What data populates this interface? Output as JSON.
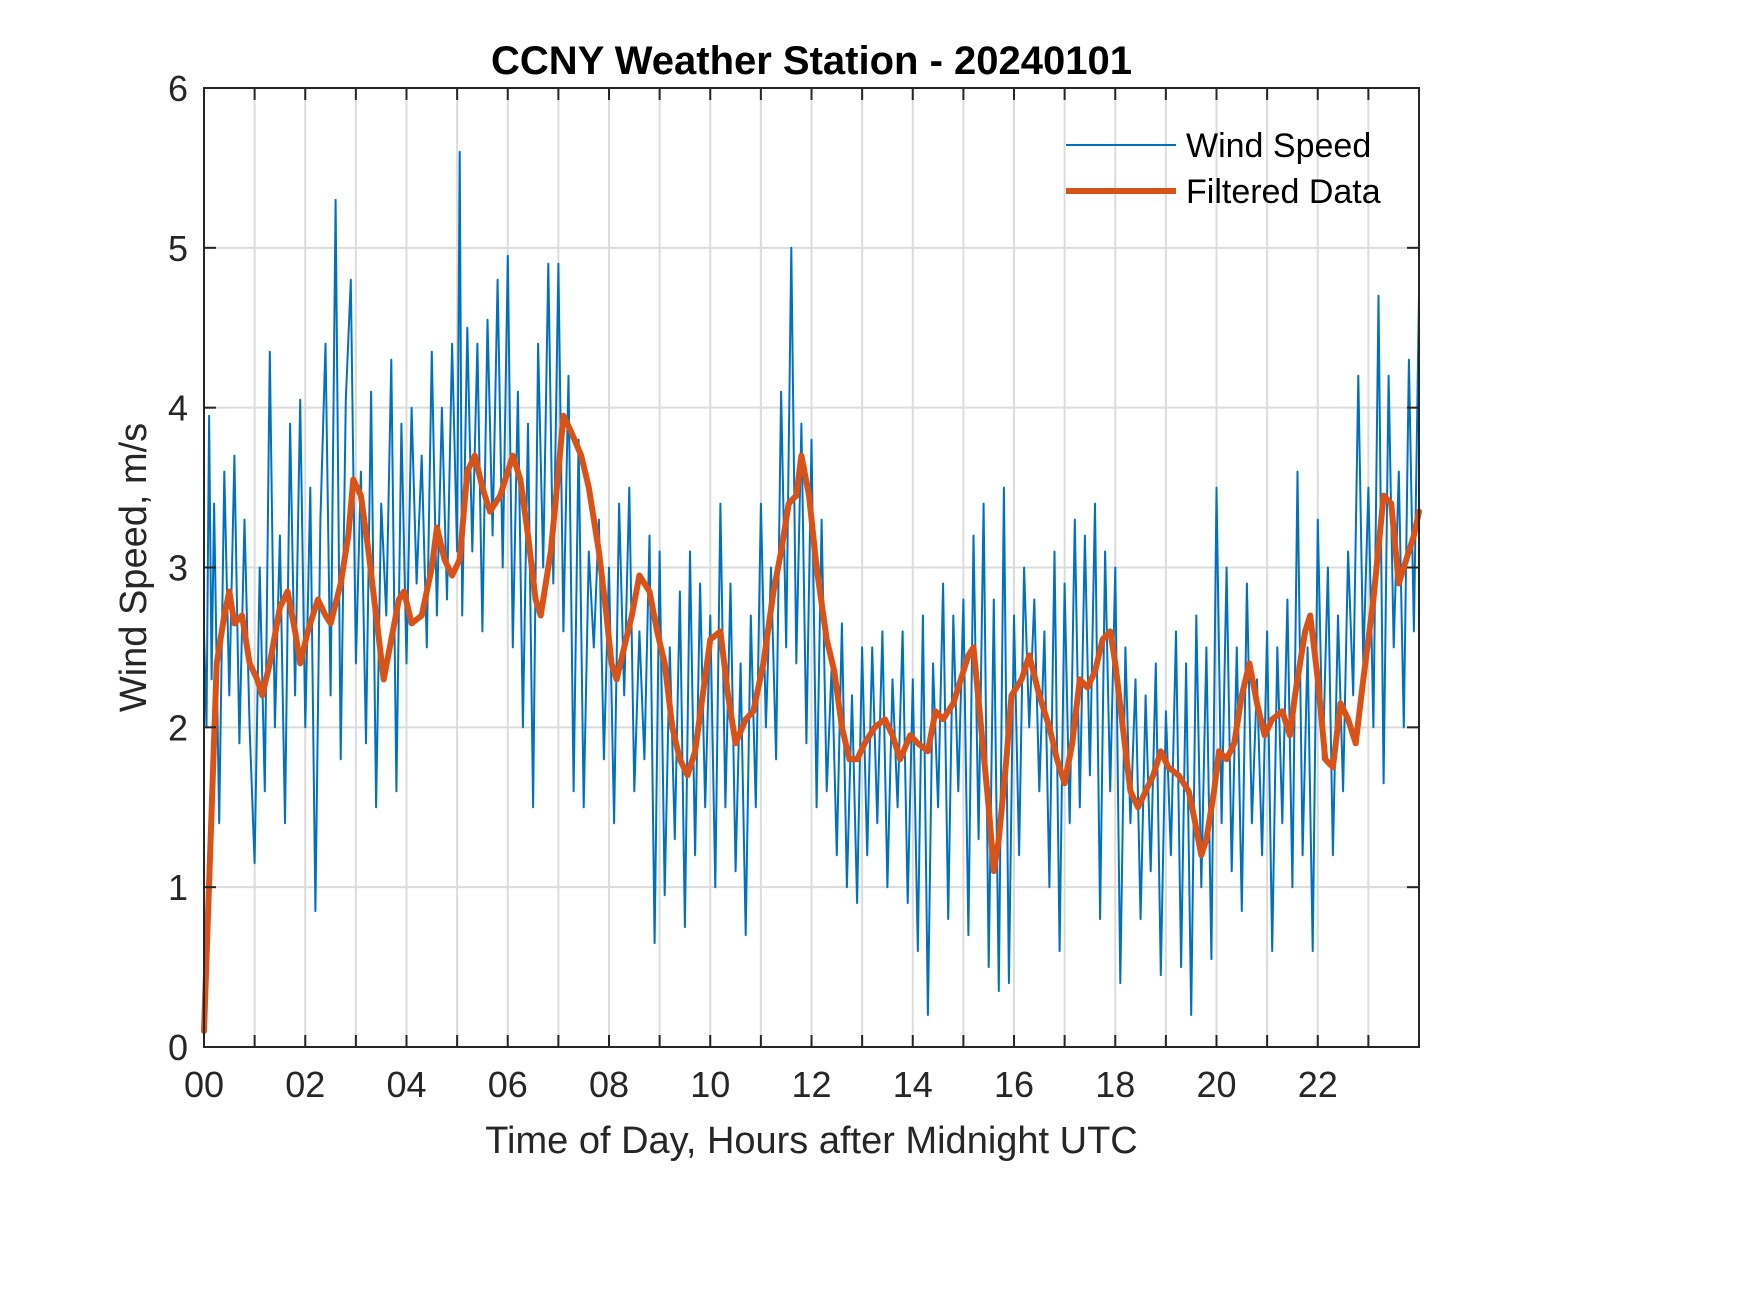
{
  "chart_data": {
    "type": "line",
    "title": "CCNY Weather Station - 20240101",
    "xlabel": "Time of Day, Hours after Midnight UTC",
    "ylabel": "Wind Speed, m/s",
    "xlim": [
      0,
      24
    ],
    "ylim": [
      0,
      6
    ],
    "grid": true,
    "legend_position": "top-right",
    "x_tick_values": [
      0,
      2,
      4,
      6,
      8,
      10,
      12,
      14,
      16,
      18,
      20,
      22
    ],
    "x_tick_labels": [
      "00",
      "02",
      "04",
      "06",
      "08",
      "10",
      "12",
      "14",
      "16",
      "18",
      "20",
      "22"
    ],
    "x_minor_grid_step_hours": 1,
    "y_tick_values": [
      0,
      1,
      2,
      3,
      4,
      5,
      6
    ],
    "y_tick_labels": [
      "0",
      "1",
      "2",
      "3",
      "4",
      "5",
      "6"
    ],
    "series": [
      {
        "name": "Wind Speed",
        "color": "#0072bd",
        "style": "thin",
        "note": "dense raw 1-minute-like samples; key extrema traced from figure",
        "x": [
          0.0,
          0.05,
          0.1,
          0.15,
          0.2,
          0.3,
          0.4,
          0.5,
          0.6,
          0.7,
          0.8,
          0.9,
          1.0,
          1.1,
          1.2,
          1.3,
          1.4,
          1.5,
          1.6,
          1.7,
          1.8,
          1.9,
          2.0,
          2.1,
          2.2,
          2.3,
          2.4,
          2.5,
          2.6,
          2.7,
          2.8,
          2.9,
          3.0,
          3.1,
          3.2,
          3.3,
          3.4,
          3.5,
          3.6,
          3.7,
          3.8,
          3.9,
          4.0,
          4.1,
          4.2,
          4.3,
          4.4,
          4.5,
          4.6,
          4.7,
          4.8,
          4.9,
          5.0,
          5.05,
          5.1,
          5.2,
          5.3,
          5.4,
          5.5,
          5.6,
          5.7,
          5.8,
          5.9,
          6.0,
          6.1,
          6.2,
          6.3,
          6.4,
          6.5,
          6.6,
          6.7,
          6.8,
          6.9,
          7.0,
          7.1,
          7.2,
          7.3,
          7.4,
          7.5,
          7.6,
          7.7,
          7.8,
          7.9,
          8.0,
          8.1,
          8.2,
          8.3,
          8.4,
          8.5,
          8.6,
          8.7,
          8.8,
          8.9,
          9.0,
          9.1,
          9.2,
          9.3,
          9.4,
          9.5,
          9.6,
          9.7,
          9.8,
          9.9,
          10.0,
          10.1,
          10.2,
          10.3,
          10.4,
          10.5,
          10.6,
          10.7,
          10.8,
          10.9,
          11.0,
          11.1,
          11.2,
          11.3,
          11.4,
          11.5,
          11.6,
          11.7,
          11.8,
          11.9,
          12.0,
          12.1,
          12.2,
          12.3,
          12.4,
          12.5,
          12.6,
          12.7,
          12.8,
          12.9,
          13.0,
          13.1,
          13.2,
          13.3,
          13.4,
          13.5,
          13.6,
          13.7,
          13.8,
          13.9,
          14.0,
          14.1,
          14.2,
          14.3,
          14.4,
          14.5,
          14.6,
          14.7,
          14.8,
          14.9,
          15.0,
          15.1,
          15.2,
          15.3,
          15.4,
          15.5,
          15.6,
          15.7,
          15.8,
          15.9,
          16.0,
          16.1,
          16.2,
          16.3,
          16.4,
          16.5,
          16.6,
          16.7,
          16.8,
          16.9,
          17.0,
          17.1,
          17.2,
          17.3,
          17.4,
          17.5,
          17.6,
          17.7,
          17.8,
          17.9,
          18.0,
          18.1,
          18.2,
          18.3,
          18.4,
          18.5,
          18.6,
          18.7,
          18.8,
          18.9,
          19.0,
          19.1,
          19.2,
          19.3,
          19.4,
          19.5,
          19.6,
          19.7,
          19.8,
          19.9,
          20.0,
          20.1,
          20.2,
          20.3,
          20.4,
          20.5,
          20.6,
          20.7,
          20.8,
          20.9,
          21.0,
          21.1,
          21.2,
          21.3,
          21.4,
          21.5,
          21.6,
          21.7,
          21.8,
          21.9,
          22.0,
          22.1,
          22.2,
          22.3,
          22.4,
          22.5,
          22.6,
          22.7,
          22.8,
          22.9,
          23.0,
          23.1,
          23.2,
          23.3,
          23.4,
          23.5,
          23.6,
          23.7,
          23.8,
          23.9,
          24.0
        ],
        "values": [
          2.6,
          2.0,
          3.95,
          2.3,
          3.4,
          1.4,
          3.6,
          2.2,
          3.7,
          1.9,
          3.3,
          2.0,
          1.15,
          3.0,
          1.6,
          4.35,
          2.0,
          3.2,
          1.4,
          3.9,
          2.2,
          4.05,
          2.0,
          3.5,
          0.85,
          3.3,
          4.4,
          2.2,
          5.3,
          1.8,
          4.05,
          4.8,
          2.4,
          3.6,
          1.9,
          4.1,
          1.5,
          3.4,
          2.7,
          4.3,
          1.6,
          3.9,
          2.4,
          4.0,
          2.9,
          3.7,
          2.5,
          4.35,
          2.7,
          4.0,
          2.8,
          4.4,
          3.1,
          5.6,
          2.7,
          4.5,
          3.1,
          4.4,
          2.6,
          4.55,
          3.2,
          4.8,
          3.0,
          4.95,
          2.5,
          4.1,
          2.0,
          3.9,
          1.5,
          4.4,
          3.0,
          4.9,
          2.9,
          4.9,
          2.6,
          4.2,
          1.6,
          3.8,
          1.5,
          3.1,
          2.5,
          3.3,
          1.8,
          3.0,
          1.4,
          3.4,
          2.2,
          3.5,
          1.6,
          2.6,
          1.8,
          3.2,
          0.65,
          3.1,
          0.95,
          2.5,
          1.3,
          2.85,
          0.75,
          3.1,
          1.2,
          2.9,
          1.5,
          2.7,
          1.0,
          3.4,
          1.5,
          2.9,
          1.1,
          2.4,
          0.7,
          2.7,
          1.5,
          3.4,
          2.0,
          3.0,
          1.8,
          4.1,
          2.5,
          5.0,
          2.4,
          3.9,
          1.9,
          3.8,
          1.5,
          3.3,
          1.6,
          2.4,
          1.2,
          2.65,
          1.0,
          2.2,
          0.9,
          2.5,
          1.2,
          2.5,
          1.4,
          2.6,
          1.0,
          2.3,
          1.5,
          2.6,
          0.9,
          2.3,
          0.6,
          2.7,
          0.2,
          2.4,
          1.5,
          2.9,
          0.8,
          2.7,
          1.6,
          2.8,
          0.7,
          3.2,
          1.3,
          3.4,
          0.5,
          2.8,
          0.35,
          3.5,
          0.4,
          2.7,
          1.2,
          3.0,
          2.0,
          2.8,
          1.6,
          2.6,
          1.0,
          3.1,
          0.6,
          2.9,
          1.4,
          3.3,
          1.5,
          3.2,
          1.7,
          3.4,
          0.8,
          3.1,
          1.6,
          3.0,
          0.4,
          2.5,
          1.4,
          2.3,
          0.8,
          2.2,
          1.1,
          2.4,
          0.45,
          2.1,
          1.2,
          2.6,
          0.5,
          2.4,
          0.2,
          2.7,
          1.0,
          2.5,
          0.55,
          3.5,
          1.4,
          3.0,
          1.1,
          2.5,
          0.85,
          2.9,
          1.4,
          2.3,
          1.2,
          2.6,
          0.6,
          2.5,
          1.4,
          2.8,
          1.0,
          3.6,
          1.2,
          2.5,
          0.6,
          3.3,
          1.8,
          3.0,
          1.2,
          2.7,
          1.6,
          3.1,
          2.2,
          4.2,
          2.4,
          3.5,
          2.0,
          4.7,
          1.65,
          4.2,
          2.5,
          3.6,
          2.0,
          4.3,
          2.6,
          4.7
        ]
      },
      {
        "name": "Filtered Data",
        "color": "#d95319",
        "style": "thick",
        "x": [
          0.0,
          0.25,
          0.4,
          0.5,
          0.6,
          0.75,
          0.9,
          1.05,
          1.15,
          1.3,
          1.5,
          1.65,
          1.8,
          1.9,
          2.05,
          2.25,
          2.4,
          2.5,
          2.7,
          2.85,
          2.95,
          3.1,
          3.25,
          3.4,
          3.55,
          3.7,
          3.85,
          3.95,
          4.1,
          4.3,
          4.5,
          4.6,
          4.75,
          4.9,
          5.05,
          5.2,
          5.35,
          5.5,
          5.65,
          5.85,
          6.0,
          6.1,
          6.25,
          6.4,
          6.55,
          6.65,
          6.85,
          7.0,
          7.1,
          7.25,
          7.45,
          7.6,
          7.8,
          7.95,
          8.05,
          8.15,
          8.3,
          8.45,
          8.6,
          8.8,
          8.95,
          9.1,
          9.25,
          9.4,
          9.55,
          9.7,
          9.85,
          10.0,
          10.2,
          10.35,
          10.5,
          10.7,
          10.85,
          11.05,
          11.25,
          11.4,
          11.55,
          11.7,
          11.8,
          11.95,
          12.1,
          12.3,
          12.45,
          12.6,
          12.75,
          12.9,
          13.05,
          13.25,
          13.45,
          13.6,
          13.75,
          13.95,
          14.1,
          14.3,
          14.45,
          14.6,
          14.8,
          14.95,
          15.1,
          15.2,
          15.35,
          15.5,
          15.6,
          15.7,
          15.85,
          15.95,
          16.15,
          16.3,
          16.5,
          16.7,
          16.85,
          17.0,
          17.15,
          17.3,
          17.45,
          17.6,
          17.75,
          17.9,
          18.0,
          18.15,
          18.3,
          18.45,
          18.6,
          18.75,
          18.9,
          19.05,
          19.25,
          19.45,
          19.55,
          19.7,
          19.8,
          19.95,
          20.05,
          20.2,
          20.35,
          20.5,
          20.65,
          20.8,
          20.95,
          21.1,
          21.3,
          21.45,
          21.55,
          21.75,
          21.85,
          22.0,
          22.15,
          22.3,
          22.45,
          22.6,
          22.75,
          22.9,
          23.1,
          23.3,
          23.45,
          23.6,
          23.75,
          23.9,
          24.0
        ],
        "values": [
          0.1,
          2.4,
          2.7,
          2.85,
          2.65,
          2.7,
          2.4,
          2.3,
          2.2,
          2.4,
          2.75,
          2.85,
          2.6,
          2.4,
          2.6,
          2.8,
          2.7,
          2.65,
          2.9,
          3.2,
          3.55,
          3.45,
          3.1,
          2.7,
          2.3,
          2.55,
          2.8,
          2.85,
          2.65,
          2.7,
          3.0,
          3.25,
          3.05,
          2.95,
          3.05,
          3.6,
          3.7,
          3.5,
          3.35,
          3.45,
          3.6,
          3.7,
          3.55,
          3.2,
          2.8,
          2.7,
          3.1,
          3.6,
          3.95,
          3.85,
          3.7,
          3.5,
          3.1,
          2.7,
          2.4,
          2.3,
          2.5,
          2.7,
          2.95,
          2.85,
          2.6,
          2.4,
          2.0,
          1.8,
          1.7,
          1.85,
          2.2,
          2.55,
          2.6,
          2.2,
          1.9,
          2.05,
          2.1,
          2.4,
          2.85,
          3.1,
          3.4,
          3.45,
          3.7,
          3.45,
          3.0,
          2.55,
          2.35,
          2.0,
          1.8,
          1.8,
          1.9,
          2.0,
          2.05,
          1.95,
          1.8,
          1.95,
          1.9,
          1.85,
          2.1,
          2.05,
          2.15,
          2.3,
          2.45,
          2.5,
          2.0,
          1.5,
          1.1,
          1.3,
          1.8,
          2.2,
          2.3,
          2.45,
          2.2,
          2.0,
          1.8,
          1.65,
          1.9,
          2.3,
          2.25,
          2.35,
          2.55,
          2.6,
          2.4,
          2.0,
          1.6,
          1.5,
          1.6,
          1.7,
          1.85,
          1.75,
          1.7,
          1.6,
          1.45,
          1.2,
          1.3,
          1.6,
          1.85,
          1.8,
          1.9,
          2.2,
          2.4,
          2.15,
          1.95,
          2.05,
          2.1,
          1.95,
          2.2,
          2.6,
          2.7,
          2.3,
          1.8,
          1.75,
          2.15,
          2.05,
          1.9,
          2.3,
          2.8,
          3.45,
          3.4,
          2.9,
          3.05,
          3.2,
          3.35
        ]
      }
    ]
  }
}
